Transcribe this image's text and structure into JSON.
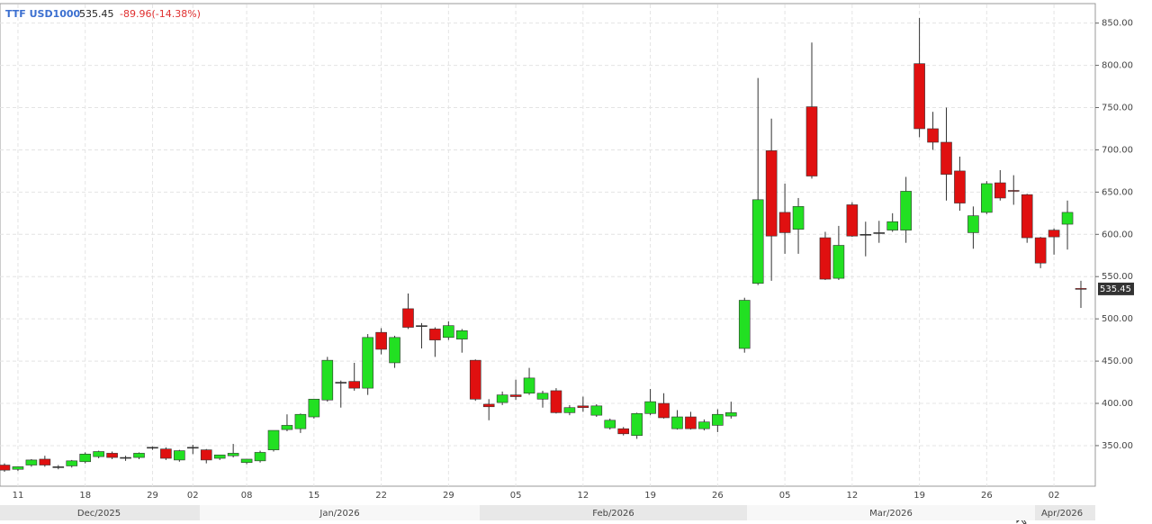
{
  "chart_data": {
    "type": "candlestick",
    "header": {
      "symbol": "TTF USD1000",
      "last": 535.45,
      "change": "-89.96(-14.38%)"
    },
    "last_label": "535.45",
    "x": [
      null,
      "11",
      null,
      null,
      null,
      null,
      "18",
      null,
      null,
      null,
      null,
      "29",
      null,
      null,
      "02",
      null,
      null,
      null,
      "08",
      null,
      null,
      null,
      null,
      "15",
      null,
      null,
      null,
      null,
      "22",
      null,
      null,
      null,
      null,
      "29",
      null,
      null,
      null,
      null,
      "05",
      null,
      null,
      null,
      null,
      "12",
      null,
      null,
      null,
      null,
      "19",
      null,
      null,
      null,
      null,
      "26",
      null,
      null,
      null,
      null,
      "05",
      null,
      null,
      null,
      null,
      "12",
      null,
      null,
      null,
      null,
      "19",
      null,
      null,
      null,
      null,
      "26",
      null,
      null,
      null,
      null,
      "02",
      null,
      null
    ],
    "periods": [
      "Dec/2025",
      "Jan/2026",
      "Feb/2026",
      "Mar/2026",
      "Apr/2026"
    ],
    "open": [
      327,
      322,
      327,
      334,
      325,
      326,
      331,
      337,
      341,
      336,
      336,
      348,
      346,
      333,
      348,
      345,
      335,
      338,
      330,
      332,
      345,
      369,
      370,
      384,
      404,
      425,
      426,
      418,
      484,
      448,
      512,
      492,
      488,
      478,
      476,
      451,
      399,
      401,
      410,
      412,
      405,
      415,
      389,
      397,
      386,
      371,
      370,
      362,
      388,
      400,
      370,
      384,
      370,
      374,
      385,
      465,
      542,
      699,
      626,
      606,
      751,
      596,
      548,
      635,
      600,
      602,
      605,
      605,
      802,
      725,
      709,
      675,
      602,
      626,
      661,
      652,
      647,
      596,
      605,
      612,
      536
    ],
    "high": [
      329,
      325,
      334,
      338,
      327,
      333,
      342,
      344,
      343,
      338,
      342,
      349,
      348,
      345,
      351,
      346,
      339,
      352,
      334,
      344,
      368,
      387,
      388,
      405,
      455,
      427,
      448,
      482,
      489,
      480,
      530,
      495,
      490,
      497,
      488,
      452,
      405,
      414,
      428,
      442,
      415,
      418,
      398,
      408,
      399,
      382,
      372,
      389,
      417,
      412,
      392,
      390,
      381,
      393,
      402,
      525,
      785,
      737,
      660,
      643,
      827,
      603,
      610,
      638,
      615,
      616,
      625,
      668,
      856,
      745,
      750,
      692,
      633,
      663,
      676,
      670,
      648,
      597,
      607,
      640,
      545
    ],
    "low": [
      319,
      320,
      325,
      325,
      322,
      324,
      329,
      335,
      334,
      332,
      334,
      345,
      333,
      331,
      340,
      329,
      333,
      336,
      328,
      330,
      343,
      367,
      365,
      382,
      402,
      395,
      415,
      410,
      458,
      442,
      488,
      465,
      455,
      475,
      460,
      403,
      380,
      398,
      404,
      410,
      395,
      388,
      386,
      390,
      384,
      369,
      362,
      358,
      386,
      382,
      369,
      369,
      368,
      366,
      382,
      460,
      540,
      545,
      577,
      577,
      666,
      546,
      546,
      597,
      574,
      590,
      603,
      590,
      715,
      700,
      640,
      628,
      583,
      624,
      640,
      635,
      590,
      560,
      576,
      582,
      513
    ],
    "close": [
      321,
      325,
      333,
      327,
      325,
      332,
      340,
      343,
      336,
      336,
      341,
      348,
      335,
      344,
      348,
      333,
      339,
      341,
      334,
      342,
      368,
      374,
      387,
      405,
      451,
      425,
      418,
      478,
      464,
      478,
      490,
      492,
      475,
      492,
      486,
      405,
      396,
      410,
      408,
      430,
      412,
      389,
      395,
      395,
      397,
      380,
      364,
      388,
      402,
      383,
      384,
      370,
      378,
      387,
      389,
      522,
      641,
      598,
      602,
      633,
      669,
      547,
      587,
      598,
      600,
      602,
      615,
      651,
      725,
      709,
      671,
      637,
      622,
      660,
      643,
      651,
      596,
      566,
      597,
      626,
      535.45
    ],
    "up_color": "#22e022",
    "down_color": "#e01010",
    "ylim": [
      302,
      872
    ],
    "yticks": [
      {
        "value": 350,
        "label": "350.00"
      },
      {
        "value": 400,
        "label": "400.00"
      },
      {
        "value": 450,
        "label": "450.00"
      },
      {
        "value": 500,
        "label": "500.00"
      },
      {
        "value": 550,
        "label": "550.00"
      },
      {
        "value": 600,
        "label": "600.00"
      },
      {
        "value": 650,
        "label": "650.00"
      },
      {
        "value": 700,
        "label": "700.00"
      },
      {
        "value": 750,
        "label": "750.00"
      },
      {
        "value": 800,
        "label": "800.00"
      },
      {
        "value": 850,
        "label": "850.00"
      }
    ],
    "grid": true
  }
}
